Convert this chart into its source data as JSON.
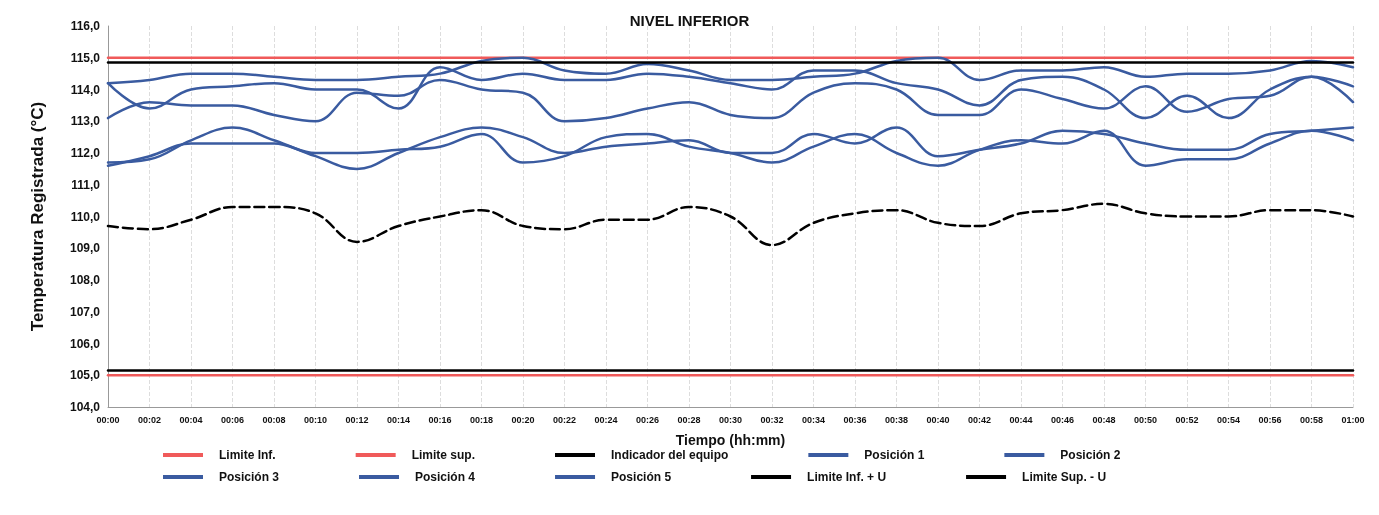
{
  "chart_data": {
    "type": "line",
    "title": "NIVEL INFERIOR",
    "xlabel": "Tiempo (hh:mm)",
    "ylabel": "Temperatura Registrada (°C)",
    "categories": [
      "00:00",
      "00:02",
      "00:04",
      "00:06",
      "00:08",
      "00:10",
      "00:12",
      "00:14",
      "00:16",
      "00:18",
      "00:20",
      "00:22",
      "00:24",
      "00:26",
      "00:28",
      "00:30",
      "00:32",
      "00:34",
      "00:36",
      "00:38",
      "00:40",
      "00:42",
      "00:44",
      "00:46",
      "00:48",
      "00:50",
      "00:52",
      "00:54",
      "00:56",
      "00:58",
      "01:00"
    ],
    "ylim": [
      104,
      116
    ],
    "yticks": [
      {
        "value": 104,
        "label": "104,0"
      },
      {
        "value": 105,
        "label": "105,0"
      },
      {
        "value": 106,
        "label": "106,0"
      },
      {
        "value": 107,
        "label": "107,0"
      },
      {
        "value": 108,
        "label": "108,0"
      },
      {
        "value": 109,
        "label": "109,0"
      },
      {
        "value": 110,
        "label": "110,0"
      },
      {
        "value": 111,
        "label": "111,0"
      },
      {
        "value": 112,
        "label": "112,0"
      },
      {
        "value": 113,
        "label": "113,0"
      },
      {
        "value": 114,
        "label": "114,0"
      },
      {
        "value": 115,
        "label": "115,0"
      },
      {
        "value": 116,
        "label": "116,0"
      }
    ],
    "grid": "x",
    "legend": "bottom",
    "marker": "none",
    "line_style": "solid",
    "series": [
      {
        "name": "Limite Inf.",
        "color": "#f05a5a",
        "values": [
          105,
          105,
          105,
          105,
          105,
          105,
          105,
          105,
          105,
          105,
          105,
          105,
          105,
          105,
          105,
          105,
          105,
          105,
          105,
          105,
          105,
          105,
          105,
          105,
          105,
          105,
          105,
          105,
          105,
          105,
          105
        ]
      },
      {
        "name": "Limite sup.",
        "color": "#f05a5a",
        "values": [
          115,
          115,
          115,
          115,
          115,
          115,
          115,
          115,
          115,
          115,
          115,
          115,
          115,
          115,
          115,
          115,
          115,
          115,
          115,
          115,
          115,
          115,
          115,
          115,
          115,
          115,
          115,
          115,
          115,
          115,
          115
        ]
      },
      {
        "name": "Indicador del equipo",
        "color": "#000000",
        "line_style": "dashed",
        "values": [
          109.7,
          109.6,
          109.9,
          110.3,
          110.3,
          110.1,
          109.2,
          109.7,
          110.0,
          110.2,
          109.7,
          109.6,
          109.9,
          109.9,
          110.3,
          110.0,
          109.1,
          109.8,
          110.1,
          110.2,
          109.8,
          109.7,
          110.1,
          110.2,
          110.4,
          110.1,
          110.0,
          110.0,
          110.2,
          110.2,
          110.0
        ]
      },
      {
        "name": "Posición 1",
        "color": "#3a5ba0",
        "values": [
          114.2,
          114.3,
          114.5,
          114.5,
          114.4,
          114.3,
          114.3,
          114.4,
          114.5,
          114.9,
          115.0,
          114.6,
          114.5,
          114.8,
          114.6,
          114.3,
          114.3,
          114.4,
          114.5,
          114.9,
          115.0,
          114.3,
          114.6,
          114.6,
          114.7,
          114.4,
          114.5,
          114.5,
          114.6,
          114.9,
          114.7
        ]
      },
      {
        "name": "Posición 2",
        "color": "#3a5ba0",
        "values": [
          114.2,
          113.4,
          114.0,
          114.1,
          114.2,
          114.0,
          114.0,
          113.4,
          114.7,
          114.3,
          114.5,
          114.3,
          114.3,
          114.5,
          114.4,
          114.2,
          114.0,
          114.6,
          114.6,
          114.2,
          114.0,
          113.5,
          114.3,
          114.4,
          114.0,
          113.1,
          113.8,
          113.1,
          114.0,
          114.4,
          113.6
        ]
      },
      {
        "name": "Posición 3",
        "color": "#3a5ba0",
        "values": [
          113.1,
          113.6,
          113.5,
          113.5,
          113.2,
          113.0,
          113.9,
          113.8,
          114.3,
          114.0,
          113.9,
          113.0,
          113.1,
          113.4,
          113.6,
          113.2,
          113.1,
          113.9,
          114.2,
          114.0,
          113.2,
          113.2,
          114.0,
          113.7,
          113.4,
          114.1,
          113.3,
          113.7,
          113.8,
          114.4,
          114.1
        ]
      },
      {
        "name": "Posición 4",
        "color": "#3a5ba0",
        "values": [
          111.7,
          111.8,
          112.4,
          112.8,
          112.4,
          111.9,
          111.5,
          112.0,
          112.5,
          112.8,
          112.5,
          112.0,
          112.2,
          112.3,
          112.4,
          112.0,
          112.0,
          112.6,
          112.3,
          112.8,
          111.9,
          112.1,
          112.3,
          112.7,
          112.6,
          112.3,
          112.1,
          112.1,
          112.6,
          112.7,
          112.8
        ]
      },
      {
        "name": "Posición 5",
        "color": "#3a5ba0",
        "values": [
          111.6,
          111.9,
          112.3,
          112.3,
          112.3,
          112.0,
          112.0,
          112.1,
          112.2,
          112.6,
          111.7,
          111.9,
          112.5,
          112.6,
          112.2,
          112.0,
          111.7,
          112.2,
          112.6,
          112.0,
          111.6,
          112.1,
          112.4,
          112.3,
          112.7,
          111.6,
          111.8,
          111.8,
          112.3,
          112.7,
          112.4
        ]
      },
      {
        "name": "Limite Inf. + U",
        "color": "#000000",
        "values": [
          105.15,
          105.15,
          105.15,
          105.15,
          105.15,
          105.15,
          105.15,
          105.15,
          105.15,
          105.15,
          105.15,
          105.15,
          105.15,
          105.15,
          105.15,
          105.15,
          105.15,
          105.15,
          105.15,
          105.15,
          105.15,
          105.15,
          105.15,
          105.15,
          105.15,
          105.15,
          105.15,
          105.15,
          105.15,
          105.15,
          105.15
        ]
      },
      {
        "name": "Limite Sup. - U",
        "color": "#000000",
        "values": [
          114.85,
          114.85,
          114.85,
          114.85,
          114.85,
          114.85,
          114.85,
          114.85,
          114.85,
          114.85,
          114.85,
          114.85,
          114.85,
          114.85,
          114.85,
          114.85,
          114.85,
          114.85,
          114.85,
          114.85,
          114.85,
          114.85,
          114.85,
          114.85,
          114.85,
          114.85,
          114.85,
          114.85,
          114.85,
          114.85,
          114.85
        ]
      }
    ]
  }
}
